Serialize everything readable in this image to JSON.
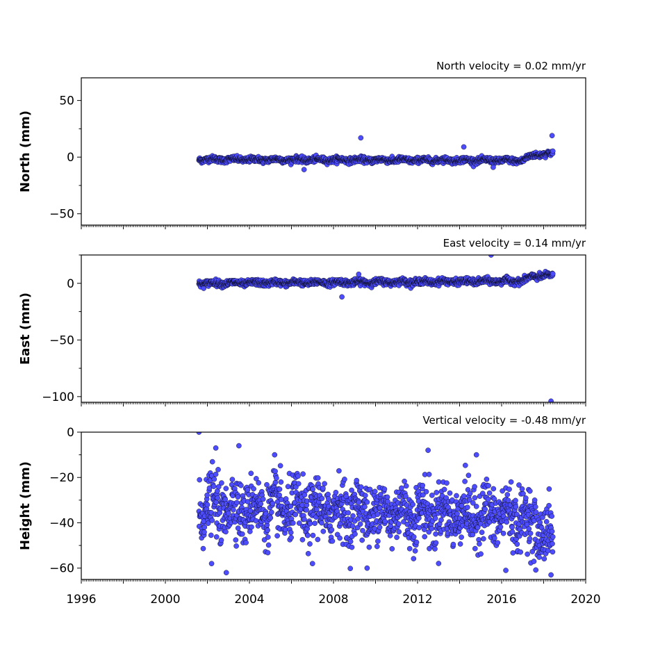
{
  "chart_data": [
    {
      "type": "scatter",
      "title": "North velocity = 0.02 mm/yr",
      "ylabel": "North (mm)",
      "xlim": [
        1996,
        2020
      ],
      "ylim": [
        -60,
        70
      ],
      "yticks": [
        -50,
        0,
        50
      ],
      "ytick_labels": [
        "−50",
        "0",
        "50"
      ],
      "marker_color": "#4d4dff",
      "edge_color": "#000000",
      "noise": 1.2,
      "segments": [
        {
          "x": [
            2001.6,
            2017.0
          ],
          "y": [
            -2,
            -3
          ]
        },
        {
          "x": [
            2017.0,
            2017.5
          ],
          "y": [
            -3,
            2
          ]
        },
        {
          "x": [
            2017.5,
            2018.45
          ],
          "y": [
            2,
            3
          ]
        }
      ],
      "outliers": [
        [
          2009.3,
          17
        ],
        [
          2018.4,
          19
        ],
        [
          2014.2,
          9
        ],
        [
          2006.6,
          -11
        ],
        [
          2015.6,
          -9
        ]
      ]
    },
    {
      "type": "scatter",
      "title": "East velocity = 0.14 mm/yr",
      "ylabel": "East (mm)",
      "xlim": [
        1996,
        2020
      ],
      "ylim": [
        -105,
        25
      ],
      "yticks": [
        -100,
        -50,
        0
      ],
      "ytick_labels": [
        "−100",
        "−50",
        "0"
      ],
      "marker_color": "#4d4dff",
      "edge_color": "#000000",
      "noise": 1.3,
      "segments": [
        {
          "x": [
            2001.6,
            2017.0
          ],
          "y": [
            0,
            2
          ]
        },
        {
          "x": [
            2017.0,
            2017.5
          ],
          "y": [
            2,
            6
          ]
        },
        {
          "x": [
            2017.5,
            2018.45
          ],
          "y": [
            6,
            7
          ]
        }
      ],
      "outliers": [
        [
          2015.5,
          25
        ],
        [
          2008.4,
          -12
        ],
        [
          2018.35,
          -104
        ],
        [
          2009.2,
          8
        ]
      ]
    },
    {
      "type": "scatter",
      "title": "Vertical velocity = -0.48 mm/yr",
      "ylabel": "Height (mm)",
      "xlim": [
        1996,
        2020
      ],
      "ylim": [
        -65,
        0
      ],
      "yticks": [
        -60,
        -40,
        -20,
        0
      ],
      "ytick_labels": [
        "−60",
        "−40",
        "−20",
        "0"
      ],
      "xticks": [
        1996,
        2000,
        2004,
        2008,
        2012,
        2016,
        2020
      ],
      "marker_color": "#4d4dff",
      "edge_color": "#000000",
      "noise": 6.5,
      "segments": [
        {
          "x": [
            2001.6,
            2017.0
          ],
          "y": [
            -33,
            -37
          ]
        },
        {
          "x": [
            2017.0,
            2018.45
          ],
          "y": [
            -38,
            -48
          ]
        }
      ],
      "outliers": [
        [
          2001.6,
          0
        ],
        [
          2002.4,
          -7
        ],
        [
          2003.5,
          -6
        ],
        [
          2012.5,
          -8
        ],
        [
          2005.2,
          -10
        ],
        [
          2014.8,
          -10
        ],
        [
          2002.9,
          -62
        ],
        [
          2009.6,
          -60
        ],
        [
          2016.2,
          -61
        ],
        [
          2018.35,
          -63
        ],
        [
          2002.2,
          -58
        ],
        [
          2007.0,
          -58
        ]
      ]
    }
  ]
}
